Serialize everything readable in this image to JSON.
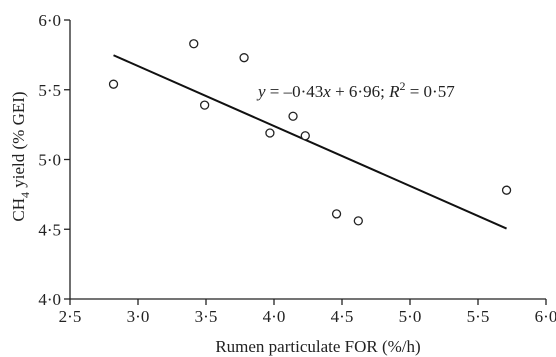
{
  "chart_data": {
    "type": "scatter",
    "xlabel": "Rumen particulate FOR (%/h)",
    "ylabel_main": "CH",
    "ylabel_sub": "4",
    "ylabel_rest": " yield (% GEI)",
    "xlim": [
      2.5,
      6.0
    ],
    "ylim": [
      4.0,
      6.0
    ],
    "x_ticks": [
      2.5,
      3.0,
      3.5,
      4.0,
      4.5,
      5.0,
      5.5,
      6.0
    ],
    "x_tick_labels": [
      "2·5",
      "3·0",
      "3·5",
      "4·0",
      "4·5",
      "5·0",
      "5·5",
      "6·0"
    ],
    "y_ticks": [
      4.0,
      4.5,
      5.0,
      5.5,
      6.0
    ],
    "y_tick_labels": [
      "4·0",
      "4·5",
      "5·0",
      "5·5",
      "6·0"
    ],
    "points": [
      {
        "x": 2.82,
        "y": 5.54
      },
      {
        "x": 3.41,
        "y": 5.83
      },
      {
        "x": 3.49,
        "y": 5.39
      },
      {
        "x": 3.78,
        "y": 5.73
      },
      {
        "x": 3.97,
        "y": 5.19
      },
      {
        "x": 4.14,
        "y": 5.31
      },
      {
        "x": 4.23,
        "y": 5.17
      },
      {
        "x": 4.46,
        "y": 4.61
      },
      {
        "x": 4.62,
        "y": 4.56
      },
      {
        "x": 5.71,
        "y": 4.78
      }
    ],
    "trendline": {
      "slope": -0.43,
      "intercept": 6.96,
      "x_start": 2.82,
      "x_end": 5.71
    },
    "annotation": {
      "y": "y",
      "eq": " = –0·43",
      "x": "x",
      "rest": " + 6·96; ",
      "R": "R",
      "sup": "2",
      "tail": " = 0·57"
    },
    "grid": false,
    "legend": "none"
  }
}
